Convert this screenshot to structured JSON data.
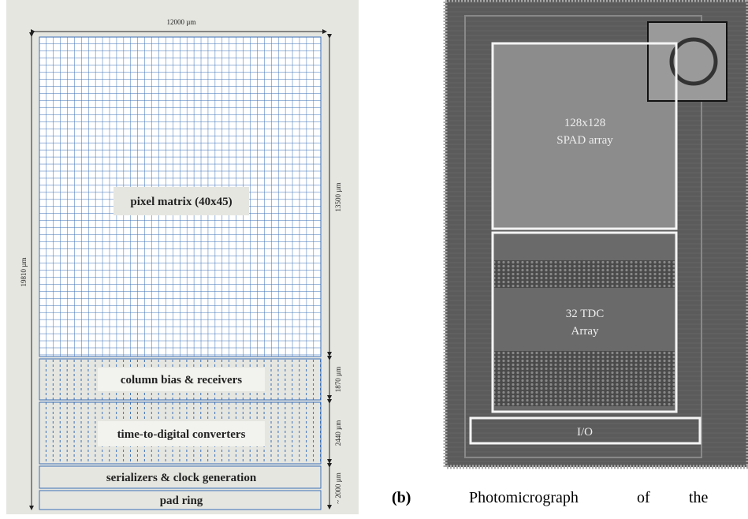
{
  "floorplan": {
    "width_label": "12000 µm",
    "height_label": "19810 µm",
    "dimensions": [
      "13500 µm",
      "1870 µm",
      "2440 µm",
      "~ 2000 µm"
    ],
    "blocks": [
      "pixel matrix (40x45)",
      "column bias & receivers",
      "time-to-digital converters",
      "serializers & clock generation",
      "pad ring"
    ]
  },
  "photo": {
    "regions": [
      {
        "lines": [
          "128x128",
          "SPAD array"
        ]
      },
      {
        "lines": [
          "32 TDC",
          "Array"
        ]
      },
      {
        "lines": [
          "I/O"
        ]
      }
    ]
  },
  "caption": {
    "tag": "(b)",
    "words": [
      "Photomicrograph",
      "of",
      "the"
    ]
  }
}
